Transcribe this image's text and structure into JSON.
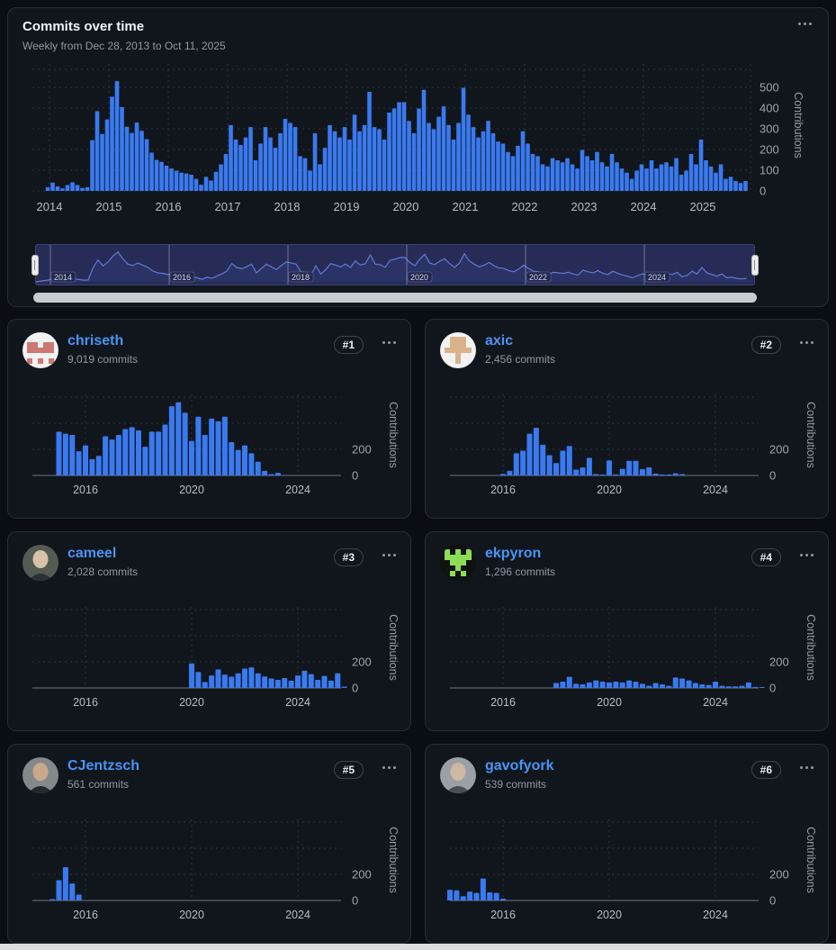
{
  "colors": {
    "bar": "#3a7af0",
    "link": "#4795f5",
    "grid": "#2d343d",
    "axis_tick": "#9ba3ae",
    "axis_year": "#b7bec8",
    "axis_label": "#959ca6",
    "baseline": "#6e7681",
    "brush_line": "#6478d6",
    "brush_fill": "#3a4690",
    "brush_label": "#ced4df"
  },
  "main_card": {
    "title": "Commits over time",
    "subtitle": "Weekly from Dec 28, 2013 to Oct 11, 2025",
    "menu_icon": "kebab-horizontal-icon",
    "chart_data": {
      "type": "bar",
      "title": "Commits over time",
      "ylabel": "Contributions",
      "ylim": [
        0,
        550
      ],
      "y_ticks": [
        0,
        100,
        200,
        300,
        400,
        500
      ],
      "x_ticks": [
        2014,
        2015,
        2016,
        2017,
        2018,
        2019,
        2020,
        2021,
        2022,
        2023,
        2024,
        2025
      ],
      "grid": "dashed",
      "start_year": 2013.97,
      "per_year": 12,
      "values": [
        18,
        40,
        22,
        12,
        28,
        42,
        28,
        14,
        18,
        245,
        385,
        275,
        345,
        455,
        530,
        405,
        310,
        280,
        330,
        290,
        250,
        185,
        150,
        140,
        122,
        108,
        98,
        88,
        84,
        78,
        58,
        30,
        68,
        50,
        92,
        128,
        178,
        318,
        248,
        222,
        258,
        308,
        148,
        228,
        308,
        258,
        208,
        278,
        348,
        328,
        308,
        168,
        158,
        98,
        278,
        128,
        208,
        318,
        288,
        258,
        308,
        248,
        368,
        288,
        318,
        478,
        308,
        298,
        248,
        378,
        398,
        428,
        428,
        338,
        278,
        398,
        488,
        328,
        298,
        358,
        408,
        318,
        248,
        328,
        498,
        368,
        308,
        258,
        288,
        338,
        278,
        238,
        228,
        188,
        168,
        218,
        288,
        228,
        178,
        168,
        128,
        118,
        158,
        148,
        138,
        158,
        128,
        108,
        198,
        168,
        148,
        188,
        138,
        118,
        178,
        138,
        108,
        88,
        58,
        98,
        128,
        108,
        148,
        108,
        128,
        138,
        118,
        158,
        78,
        98,
        178,
        128,
        248,
        148,
        118,
        88,
        128,
        58,
        68,
        48,
        38,
        48
      ]
    },
    "brush": {
      "labels": [
        2014,
        2016,
        2018,
        2020,
        2022,
        2024
      ],
      "left_handle": "drag-handle",
      "right_handle": "drag-handle"
    }
  },
  "contributors": [
    {
      "name": "chriseth",
      "commits": "9,019 commits",
      "rank": "#1",
      "avatar": {
        "type": "identicon",
        "bg": "#f2f2f2",
        "fg": "#cb7972",
        "pattern": [
          [
            0,
            0,
            0,
            0,
            0
          ],
          [
            1,
            1,
            0,
            1,
            1
          ],
          [
            1,
            1,
            1,
            1,
            1
          ],
          [
            0,
            0,
            0,
            0,
            0
          ],
          [
            1,
            0,
            1,
            0,
            1
          ]
        ]
      },
      "chart_data": {
        "type": "bar",
        "ylabel": "Contributions",
        "ylim": [
          0,
          600
        ],
        "y_ticks": [
          0,
          200
        ],
        "x_ticks": [
          2016,
          2020,
          2024
        ],
        "start_year": 2015,
        "per_year": 4,
        "values": [
          335,
          320,
          310,
          185,
          230,
          125,
          150,
          300,
          275,
          310,
          355,
          370,
          345,
          220,
          335,
          335,
          390,
          530,
          560,
          480,
          265,
          450,
          310,
          435,
          415,
          450,
          255,
          195,
          230,
          170,
          105,
          35,
          10,
          20
        ]
      }
    },
    {
      "name": "axic",
      "commits": "2,456 commits",
      "rank": "#2",
      "avatar": {
        "type": "identicon",
        "bg": "#f2f2f2",
        "fg": "#d9b38c",
        "pattern": [
          [
            0,
            1,
            1,
            1,
            0
          ],
          [
            0,
            1,
            1,
            1,
            0
          ],
          [
            1,
            1,
            1,
            1,
            1
          ],
          [
            0,
            0,
            1,
            0,
            0
          ],
          [
            0,
            0,
            1,
            0,
            0
          ]
        ]
      },
      "chart_data": {
        "type": "bar",
        "ylabel": "Contributions",
        "ylim": [
          0,
          600
        ],
        "y_ticks": [
          0,
          200
        ],
        "x_ticks": [
          2016,
          2020,
          2024
        ],
        "start_year": 2016,
        "per_year": 4,
        "values": [
          12,
          35,
          170,
          190,
          320,
          365,
          235,
          155,
          95,
          190,
          225,
          45,
          60,
          135,
          10,
          5,
          115,
          8,
          50,
          112,
          112,
          48,
          62,
          14,
          5,
          3,
          16,
          10
        ]
      }
    },
    {
      "name": "cameel",
      "commits": "2,028 commits",
      "rank": "#3",
      "avatar": {
        "type": "photo",
        "bg": "#555a52",
        "skin": "#d8c2a8",
        "shadow": "#2c2f35"
      },
      "chart_data": {
        "type": "bar",
        "ylabel": "Contributions",
        "ylim": [
          0,
          600
        ],
        "y_ticks": [
          0,
          200
        ],
        "x_ticks": [
          2016,
          2020,
          2024
        ],
        "start_year": 2020,
        "per_year": 4,
        "values": [
          188,
          122,
          46,
          96,
          142,
          102,
          86,
          112,
          148,
          158,
          112,
          88,
          72,
          62,
          76,
          56,
          96,
          132,
          106,
          62,
          92,
          56,
          112,
          10
        ]
      }
    },
    {
      "name": "ekpyron",
      "commits": "1,296 commits",
      "rank": "#4",
      "avatar": {
        "type": "identicon",
        "bg": "#101210",
        "fg": "#8ddd56",
        "pattern": [
          [
            1,
            0,
            1,
            0,
            1
          ],
          [
            1,
            1,
            1,
            1,
            1
          ],
          [
            0,
            1,
            1,
            1,
            0
          ],
          [
            0,
            0,
            1,
            0,
            0
          ],
          [
            0,
            1,
            0,
            1,
            0
          ]
        ]
      },
      "chart_data": {
        "type": "bar",
        "ylabel": "Contributions",
        "ylim": [
          0,
          600
        ],
        "y_ticks": [
          0,
          200
        ],
        "x_ticks": [
          2016,
          2020,
          2024
        ],
        "start_year": 2018,
        "per_year": 4,
        "values": [
          38,
          48,
          85,
          32,
          28,
          42,
          58,
          48,
          42,
          48,
          42,
          58,
          48,
          32,
          16,
          38,
          28,
          16,
          80,
          72,
          58,
          38,
          28,
          22,
          48,
          16,
          12,
          12,
          16,
          42,
          8,
          6
        ]
      }
    },
    {
      "name": "CJentzsch",
      "commits": "561 commits",
      "rank": "#5",
      "avatar": {
        "type": "photo",
        "bg": "#85888b",
        "skin": "#caa88c",
        "shadow": "#23262b"
      },
      "chart_data": {
        "type": "bar",
        "ylabel": "Contributions",
        "ylim": [
          0,
          600
        ],
        "y_ticks": [
          0,
          200
        ],
        "x_ticks": [
          2016,
          2020,
          2024
        ],
        "start_year": 2014.75,
        "per_year": 4,
        "values": [
          10,
          155,
          255,
          130,
          45
        ]
      }
    },
    {
      "name": "gavofyork",
      "commits": "539 commits",
      "rank": "#6",
      "avatar": {
        "type": "photo",
        "bg": "#9aa0a6",
        "skin": "#cdb9a1",
        "shadow": "#4a4e54"
      },
      "chart_data": {
        "type": "bar",
        "ylabel": "Contributions",
        "ylim": [
          0,
          600
        ],
        "y_ticks": [
          0,
          200
        ],
        "x_ticks": [
          2016,
          2020,
          2024
        ],
        "start_year": 2014,
        "per_year": 4,
        "values": [
          82,
          78,
          32,
          68,
          58,
          168,
          62,
          58,
          14
        ]
      }
    }
  ]
}
